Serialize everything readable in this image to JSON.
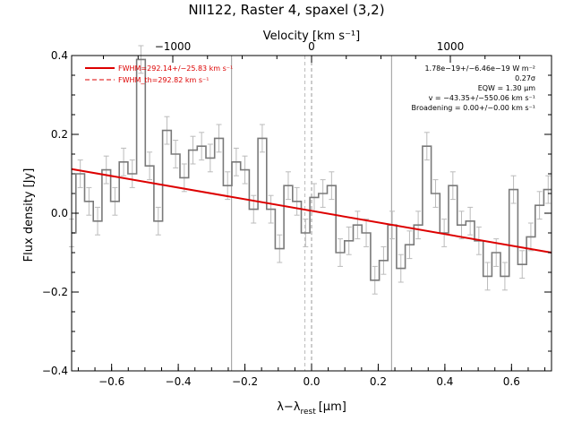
{
  "chart_data": {
    "type": "line",
    "title": "NII122, Raster 4, spaxel (3,2)",
    "xlabel_main": "λ−λ",
    "xlabel_sub": "rest",
    "xlabel_unit": "[μm]",
    "ylabel": "Flux density [Jy]",
    "top_axis_label": "Velocity [km s⁻¹]",
    "xlim": [
      -0.72,
      0.72
    ],
    "ylim": [
      -0.4,
      0.4
    ],
    "x_ticks": [
      -0.6,
      -0.4,
      -0.2,
      0.0,
      0.2,
      0.4,
      0.6
    ],
    "x_tick_labels": [
      "−0.6",
      "−0.4",
      "−0.2",
      "0.0",
      "0.2",
      "0.4",
      "0.6"
    ],
    "y_ticks": [
      -0.4,
      -0.2,
      0.0,
      0.2,
      0.4
    ],
    "y_tick_labels": [
      "−0.4",
      "−0.2",
      "0.0",
      "0.2",
      "0.4"
    ],
    "top_ticks": [
      -1000,
      0,
      1000
    ],
    "top_tick_labels": [
      "−1000",
      "0",
      "1000"
    ],
    "vertical_lines": [
      -0.24,
      0.24
    ],
    "center_line": 0.0,
    "fwhm_th_line": -0.02,
    "legend": [
      {
        "label": "FWHM=292.14+/−25.83 km s⁻¹",
        "style": "solid",
        "color": "#dd0000"
      },
      {
        "label": "FWHM_th=292.82 km s⁻¹",
        "style": "dashed",
        "color": "#dd0000"
      }
    ],
    "annotations": [
      "1.78e−19+/−6.46e−19 W m⁻²",
      "0.27σ",
      "EQW = 1.30 μm",
      "v = −43.35+/−550.06 km s⁻¹",
      "Broadening = 0.00+/−0.00 km s⁻¹"
    ],
    "fit_line": {
      "x": [
        -0.72,
        0.72
      ],
      "y": [
        0.112,
        -0.1
      ]
    },
    "step_series": {
      "x": [
        -0.72,
        -0.694,
        -0.668,
        -0.642,
        -0.616,
        -0.59,
        -0.564,
        -0.538,
        -0.512,
        -0.486,
        -0.46,
        -0.434,
        -0.408,
        -0.382,
        -0.356,
        -0.33,
        -0.304,
        -0.278,
        -0.252,
        -0.226,
        -0.2,
        -0.174,
        -0.148,
        -0.122,
        -0.096,
        -0.07,
        -0.044,
        -0.018,
        0.008,
        0.034,
        0.06,
        0.086,
        0.112,
        0.138,
        0.164,
        0.19,
        0.216,
        0.242,
        0.268,
        0.294,
        0.32,
        0.346,
        0.372,
        0.398,
        0.424,
        0.45,
        0.476,
        0.502,
        0.528,
        0.554,
        0.58,
        0.606,
        0.632,
        0.658,
        0.684,
        0.71
      ],
      "y": [
        -0.05,
        0.1,
        0.03,
        -0.02,
        0.11,
        0.03,
        0.13,
        0.1,
        0.39,
        0.12,
        -0.02,
        0.21,
        0.15,
        0.09,
        0.16,
        0.17,
        0.14,
        0.19,
        0.07,
        0.13,
        0.11,
        0.01,
        0.19,
        0.01,
        -0.09,
        0.07,
        0.03,
        -0.05,
        0.04,
        0.05,
        0.07,
        -0.1,
        -0.07,
        -0.03,
        -0.05,
        -0.17,
        -0.12,
        -0.03,
        -0.14,
        -0.08,
        -0.03,
        0.17,
        0.05,
        -0.05,
        0.07,
        -0.03,
        -0.02,
        -0.07,
        -0.16,
        -0.1,
        -0.16,
        0.06,
        -0.13,
        -0.06,
        0.02,
        0.06
      ],
      "errors": [
        0.035,
        0.035,
        0.035,
        0.035,
        0.035,
        0.035,
        0.035,
        0.035,
        0.035,
        0.035,
        0.035,
        0.035,
        0.035,
        0.035,
        0.035,
        0.035,
        0.035,
        0.035,
        0.035,
        0.035,
        0.035,
        0.035,
        0.035,
        0.035,
        0.035,
        0.035,
        0.035,
        0.035,
        0.035,
        0.035,
        0.035,
        0.035,
        0.035,
        0.035,
        0.035,
        0.035,
        0.035,
        0.035,
        0.035,
        0.035,
        0.035,
        0.035,
        0.035,
        0.035,
        0.035,
        0.035,
        0.035,
        0.035,
        0.035,
        0.035,
        0.035,
        0.035,
        0.035,
        0.035,
        0.035,
        0.035
      ]
    },
    "colors": {
      "data": "#7a7a7a",
      "errorbar": "#bbbbbb",
      "fit": "#dd0000",
      "vline": "#999999",
      "axis": "#000000"
    }
  }
}
